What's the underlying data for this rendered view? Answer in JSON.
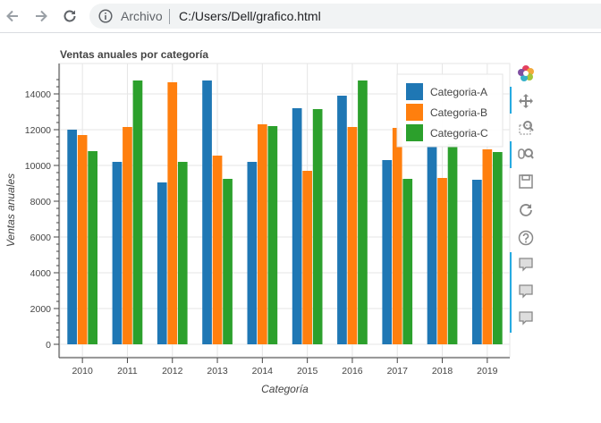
{
  "browser": {
    "scheme_label": "Archivo",
    "url": "C:/Users/Dell/grafico.html"
  },
  "icons": {
    "back": "back-arrow-icon",
    "forward": "forward-arrow-icon",
    "reload": "reload-icon",
    "info": "info-icon"
  },
  "toolbar": {
    "tools": [
      "bokeh-logo-icon",
      "pan-icon",
      "box-zoom-icon",
      "wheel-zoom-icon",
      "save-icon",
      "reset-icon",
      "help-icon",
      "hover-icon",
      "hover-icon",
      "hover-icon"
    ],
    "active_color": "#26aae1"
  },
  "chart_data": {
    "type": "bar",
    "title": "Ventas anuales por categoría",
    "xlabel": "Categoría",
    "ylabel": "Ventas anuales",
    "categories": [
      "2010",
      "2011",
      "2012",
      "2013",
      "2014",
      "2015",
      "2016",
      "2017",
      "2018",
      "2019"
    ],
    "series": [
      {
        "name": "Categoria-A",
        "color": "#1f77b4",
        "values": [
          12000,
          10200,
          9050,
          14750,
          10200,
          13200,
          13900,
          10300,
          11050,
          9200
        ]
      },
      {
        "name": "Categoria-B",
        "color": "#ff7f0e",
        "values": [
          11700,
          12150,
          14650,
          10550,
          12300,
          9700,
          12150,
          12100,
          9300,
          10900
        ]
      },
      {
        "name": "Categoria-C",
        "color": "#2ca02c",
        "values": [
          10800,
          14750,
          10200,
          9250,
          12200,
          13150,
          14750,
          9250,
          11200,
          10750
        ]
      }
    ],
    "ylim": [
      -700,
      15700
    ],
    "yticks": [
      0,
      2000,
      4000,
      6000,
      8000,
      10000,
      12000,
      14000
    ],
    "grid": true,
    "legend_position": "top-right"
  }
}
